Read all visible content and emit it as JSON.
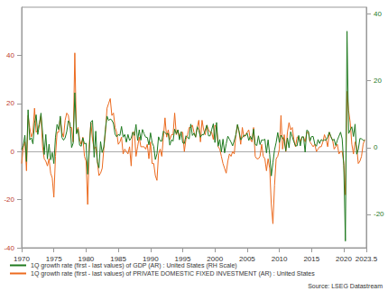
{
  "chart_data": {
    "type": "line",
    "x": [
      1970,
      1970.25,
      1970.5,
      1970.75,
      1971,
      1971.25,
      1971.5,
      1971.75,
      1972,
      1972.25,
      1972.5,
      1972.75,
      1973,
      1973.25,
      1973.5,
      1973.75,
      1974,
      1974.25,
      1974.5,
      1974.75,
      1975,
      1975.25,
      1975.5,
      1975.75,
      1976,
      1976.25,
      1976.5,
      1976.75,
      1977,
      1977.25,
      1977.5,
      1977.75,
      1978,
      1978.25,
      1978.5,
      1978.75,
      1979,
      1979.25,
      1979.5,
      1979.75,
      1980,
      1980.25,
      1980.5,
      1980.75,
      1981,
      1981.25,
      1981.5,
      1981.75,
      1982,
      1982.25,
      1982.5,
      1982.75,
      1983,
      1983.25,
      1983.5,
      1983.75,
      1984,
      1984.25,
      1984.5,
      1984.75,
      1985,
      1985.25,
      1985.5,
      1985.75,
      1986,
      1986.25,
      1986.5,
      1986.75,
      1987,
      1987.25,
      1987.5,
      1987.75,
      1988,
      1988.25,
      1988.5,
      1988.75,
      1989,
      1989.25,
      1989.5,
      1989.75,
      1990,
      1990.25,
      1990.5,
      1990.75,
      1991,
      1991.25,
      1991.5,
      1991.75,
      1992,
      1992.25,
      1992.5,
      1992.75,
      1993,
      1993.25,
      1993.5,
      1993.75,
      1994,
      1994.25,
      1994.5,
      1994.75,
      1995,
      1995.25,
      1995.5,
      1995.75,
      1996,
      1996.25,
      1996.5,
      1996.75,
      1997,
      1997.25,
      1997.5,
      1997.75,
      1998,
      1998.25,
      1998.5,
      1998.75,
      1999,
      1999.25,
      1999.5,
      1999.75,
      2000,
      2000.25,
      2000.5,
      2000.75,
      2001,
      2001.25,
      2001.5,
      2001.75,
      2002,
      2002.25,
      2002.5,
      2002.75,
      2003,
      2003.25,
      2003.5,
      2003.75,
      2004,
      2004.25,
      2004.5,
      2004.75,
      2005,
      2005.25,
      2005.5,
      2005.75,
      2006,
      2006.25,
      2006.5,
      2006.75,
      2007,
      2007.25,
      2007.5,
      2007.75,
      2008,
      2008.25,
      2008.5,
      2008.75,
      2009,
      2009.25,
      2009.5,
      2009.75,
      2010,
      2010.25,
      2010.5,
      2010.75,
      2011,
      2011.25,
      2011.5,
      2011.75,
      2012,
      2012.25,
      2012.5,
      2012.75,
      2013,
      2013.25,
      2013.5,
      2013.75,
      2014,
      2014.25,
      2014.5,
      2014.75,
      2015,
      2015.25,
      2015.5,
      2015.75,
      2016,
      2016.25,
      2016.5,
      2016.75,
      2017,
      2017.25,
      2017.5,
      2017.75,
      2018,
      2018.25,
      2018.5,
      2018.75,
      2019,
      2019.25,
      2019.5,
      2019.75,
      2020,
      2020.25,
      2020.5,
      2020.75,
      2021,
      2021.25,
      2021.5,
      2021.75,
      2022,
      2022.25,
      2022.5,
      2022.75,
      2023,
      2023.25
    ],
    "series": [
      {
        "name": "1Q growth rate (first - last values) of GDP (AR) : United States (RH Scale)",
        "color": "#1f7a1f",
        "axis": "y2",
        "values": [
          -0.6,
          0.6,
          3.7,
          -4.2,
          11.3,
          2.3,
          2.9,
          1.1,
          7.3,
          9.8,
          3.9,
          6.8,
          10.3,
          4.5,
          -2.1,
          3.9,
          -3.4,
          1.0,
          -3.7,
          -1.5,
          -4.8,
          3.1,
          6.9,
          5.4,
          9.4,
          3.0,
          2.2,
          2.9,
          4.8,
          8.0,
          7.4,
          0.0,
          1.3,
          16.4,
          4.1,
          5.5,
          0.7,
          0.4,
          2.9,
          1.1,
          1.3,
          -8.0,
          -0.5,
          7.7,
          8.1,
          -2.9,
          4.9,
          -4.3,
          -6.1,
          1.8,
          -1.5,
          0.2,
          5.4,
          9.4,
          8.1,
          8.5,
          8.2,
          7.2,
          4.0,
          3.2,
          3.9,
          3.6,
          6.3,
          3.1,
          3.9,
          1.6,
          3.9,
          2.1,
          2.8,
          4.6,
          3.6,
          6.9,
          2.1,
          5.3,
          2.2,
          5.4,
          4.1,
          3.1,
          3.0,
          0.8,
          4.4,
          1.5,
          0.3,
          -3.6,
          -1.9,
          3.2,
          2.0,
          1.9,
          4.9,
          4.4,
          4.0,
          4.2,
          0.7,
          2.3,
          1.9,
          5.5,
          4.1,
          5.3,
          2.3,
          4.7,
          1.4,
          1.2,
          3.5,
          3.0,
          2.6,
          7.0,
          3.6,
          4.3,
          3.1,
          6.2,
          5.2,
          3.1,
          3.9,
          3.8,
          5.3,
          6.7,
          3.5,
          3.5,
          5.4,
          7.1,
          1.5,
          7.5,
          0.4,
          2.4,
          -1.3,
          2.5,
          -1.6,
          1.1,
          3.4,
          2.5,
          1.6,
          0.5,
          2.1,
          3.8,
          6.9,
          4.8,
          2.3,
          3.0,
          3.7,
          3.5,
          4.3,
          2.1,
          3.4,
          2.3,
          5.5,
          0.9,
          0.6,
          3.5,
          0.9,
          2.3,
          2.2,
          2.5,
          -1.6,
          2.3,
          -2.1,
          -8.5,
          -4.6,
          -0.7,
          1.5,
          4.5,
          1.5,
          3.7,
          3.0,
          2.0,
          -1.0,
          2.9,
          -0.1,
          4.7,
          3.2,
          1.7,
          0.5,
          0.5,
          3.6,
          0.5,
          3.2,
          3.2,
          -1.4,
          5.2,
          4.9,
          1.9,
          3.3,
          3.3,
          1.0,
          0.4,
          2.4,
          1.2,
          2.4,
          2.0,
          2.3,
          2.2,
          3.2,
          4.6,
          3.3,
          2.1,
          2.5,
          0.6,
          2.2,
          3.4,
          4.6,
          2.6,
          -5.3,
          -28.0,
          34.8,
          4.2,
          5.2,
          6.2,
          3.3,
          7.0,
          -2.0,
          -0.6,
          2.7,
          2.6,
          2.2,
          2.1
        ]
      },
      {
        "name": "1Q growth rate (first - last values) of PRIVATE DOMESTIC FIXED INVESTMENT (AR) : United States",
        "color": "#ec6a1e",
        "values": [
          -5,
          2,
          4,
          -8,
          15,
          10,
          6,
          8,
          18,
          8,
          9,
          12,
          15,
          2,
          -3,
          -4,
          -6,
          -3,
          -9,
          -11,
          -19,
          -2,
          8,
          8,
          14,
          8,
          6,
          13,
          16,
          15,
          10,
          10,
          4,
          41,
          8,
          10,
          5,
          3,
          6,
          -2,
          -4,
          -22,
          3,
          12,
          5,
          1,
          2,
          -4,
          -10,
          -9,
          -7,
          1,
          8,
          18,
          20,
          22,
          15,
          16,
          10,
          8,
          3,
          4,
          6,
          -1,
          1,
          0,
          -1,
          2,
          -6,
          8,
          8,
          -2,
          2,
          6,
          2,
          2,
          2,
          1,
          3,
          -3,
          4,
          -5,
          -5,
          -10,
          -12,
          -1,
          1,
          -2,
          6,
          14,
          6,
          9,
          5,
          7,
          7,
          16,
          7,
          9,
          6,
          8,
          8,
          0,
          5,
          7,
          10,
          10,
          11,
          8,
          6,
          10,
          13,
          4,
          13,
          9,
          7,
          11,
          9,
          8,
          8,
          5,
          11,
          10,
          2,
          1,
          -2,
          -5,
          -7,
          -9,
          -4,
          -1,
          -2,
          0,
          -1,
          7,
          11,
          8,
          3,
          10,
          6,
          7,
          8,
          9,
          5,
          4,
          10,
          -2,
          -3,
          -3,
          -2,
          3,
          -2,
          -3,
          -8,
          -3,
          -7,
          -22,
          -30,
          -14,
          -3,
          -2,
          1,
          15,
          1,
          7,
          0,
          8,
          12,
          9,
          10,
          5,
          2,
          6,
          6,
          4,
          6,
          6,
          4,
          8,
          8,
          4,
          3,
          2,
          3,
          0,
          1,
          2,
          2,
          4,
          7,
          5,
          2,
          8,
          6,
          5,
          1,
          2,
          3,
          -1,
          0,
          0,
          -5,
          -18,
          25,
          17,
          12,
          3,
          -1,
          4,
          2,
          -5,
          -4,
          -2,
          3,
          5
        ]
      }
    ],
    "xlim": [
      1970,
      2023.5
    ],
    "xticks": [
      1970,
      1975,
      1980,
      1985,
      1990,
      1995,
      2000,
      2005,
      2010,
      2015,
      2020
    ],
    "ylim": [
      -40,
      60
    ],
    "yticks": [
      -40,
      -20,
      0,
      20,
      40
    ],
    "y2lim": [
      -30,
      42
    ],
    "y2ticks": [
      -20,
      0,
      20,
      40
    ],
    "grid": false,
    "legend": "bottom",
    "annotations": [
      "Source: LSEG Datastream"
    ]
  }
}
